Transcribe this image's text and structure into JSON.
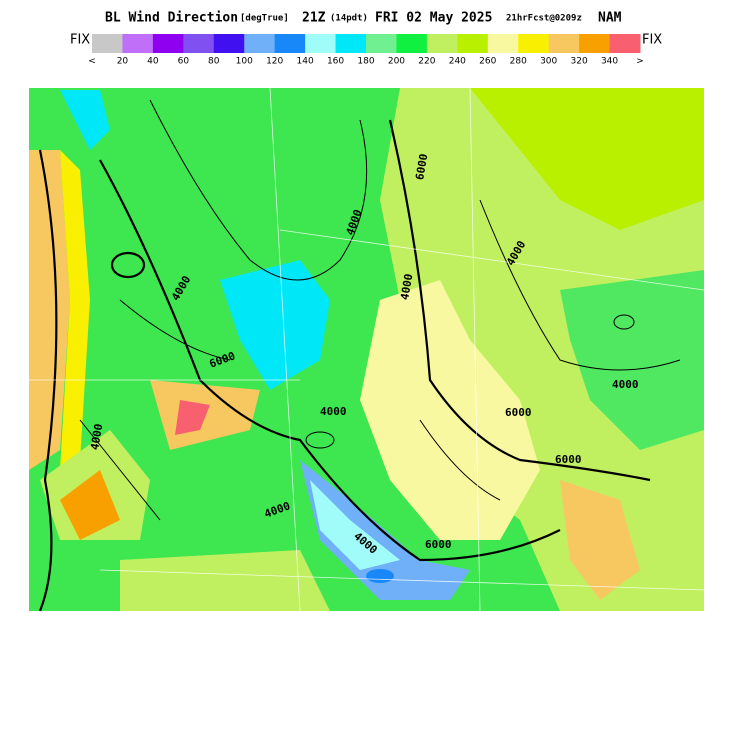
{
  "header": {
    "title": "BL Wind Direction",
    "units": "[degTrue]",
    "time": "21Z",
    "local_time": "(14pdt)",
    "date": "FRI 02 May 2025",
    "forecast": "21hrFcst@0209z",
    "model": "NAM"
  },
  "colorbar": {
    "left_label": "FIX",
    "right_label": "FIX",
    "colors": [
      "#c8c8c8",
      "#c070f8",
      "#9000f0",
      "#8050f0",
      "#4010f0",
      "#70b0f8",
      "#1888f8",
      "#a0fcf8",
      "#00e8f8",
      "#70f090",
      "#10f040",
      "#c0f060",
      "#b8f000",
      "#f8f8a0",
      "#f8f000",
      "#f8c860",
      "#f8a000",
      "#f86070"
    ],
    "labels": [
      "<",
      "20",
      "40",
      "60",
      "80",
      "100",
      "120",
      "140",
      "160",
      "180",
      "200",
      "220",
      "240",
      "260",
      "280",
      "300",
      "320",
      "340",
      ">"
    ]
  },
  "map": {
    "contour_labels": [
      "4000",
      "4000",
      "6000",
      "6000",
      "4000",
      "4000",
      "4000",
      "4000",
      "4000",
      "6000",
      "6000",
      "4000",
      "4000",
      "6000"
    ]
  }
}
